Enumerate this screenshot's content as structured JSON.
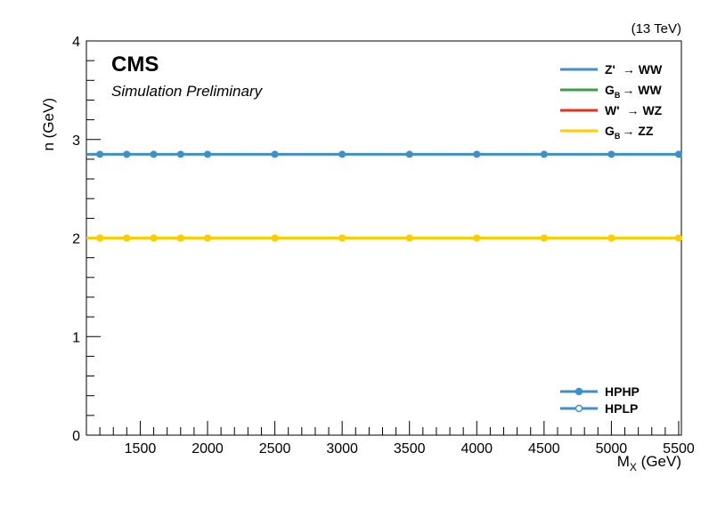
{
  "chart_data": {
    "type": "line",
    "energy_label": "(13 TeV)",
    "experiment": "CMS",
    "status": "Simulation Preliminary",
    "xlabel": "M",
    "xlabel_sub": "X",
    "xlabel_unit": " (GeV)",
    "ylabel": "n (GeV)",
    "xlim": [
      1100,
      5520
    ],
    "ylim": [
      0,
      4
    ],
    "x_ticks": [
      1500,
      2000,
      2500,
      3000,
      3500,
      4000,
      4500,
      5000,
      5500
    ],
    "y_ticks": [
      0,
      1,
      2,
      3,
      4
    ],
    "x": [
      1200,
      1400,
      1600,
      1800,
      2000,
      2500,
      3000,
      3500,
      4000,
      4500,
      5000,
      5500
    ],
    "series": [
      {
        "name": "G_B → ZZ",
        "color": "#ffcc00",
        "category": "HPHP",
        "values": [
          2.0,
          2.0,
          2.0,
          2.0,
          2.0,
          2.0,
          2.0,
          2.0,
          2.0,
          2.0,
          2.0,
          2.0
        ]
      },
      {
        "name": "Z' → WW",
        "color": "#3f90c8",
        "category": "HPHP",
        "values": [
          2.85,
          2.85,
          2.85,
          2.85,
          2.85,
          2.85,
          2.85,
          2.85,
          2.85,
          2.85,
          2.85,
          2.85
        ]
      }
    ],
    "legend_signals": [
      {
        "label": "Z'",
        "arrow": "→",
        "final": "WW",
        "color": "#3f90c8"
      },
      {
        "label": "G",
        "sub": "B",
        "arrow": "→",
        "final": "WW",
        "color": "#3aa041"
      },
      {
        "label": "W'",
        "arrow": "→",
        "final": "WZ",
        "color": "#e8321e"
      },
      {
        "label": "G",
        "sub": "B",
        "arrow": "→",
        "final": "ZZ",
        "color": "#ffcc00"
      }
    ],
    "legend_categories": [
      {
        "label": "HPHP",
        "marker": "filled",
        "color": "#3f90c8"
      },
      {
        "label": "HPLP",
        "marker": "open",
        "color": "#3f90c8"
      }
    ],
    "legend_position": "top-right"
  }
}
